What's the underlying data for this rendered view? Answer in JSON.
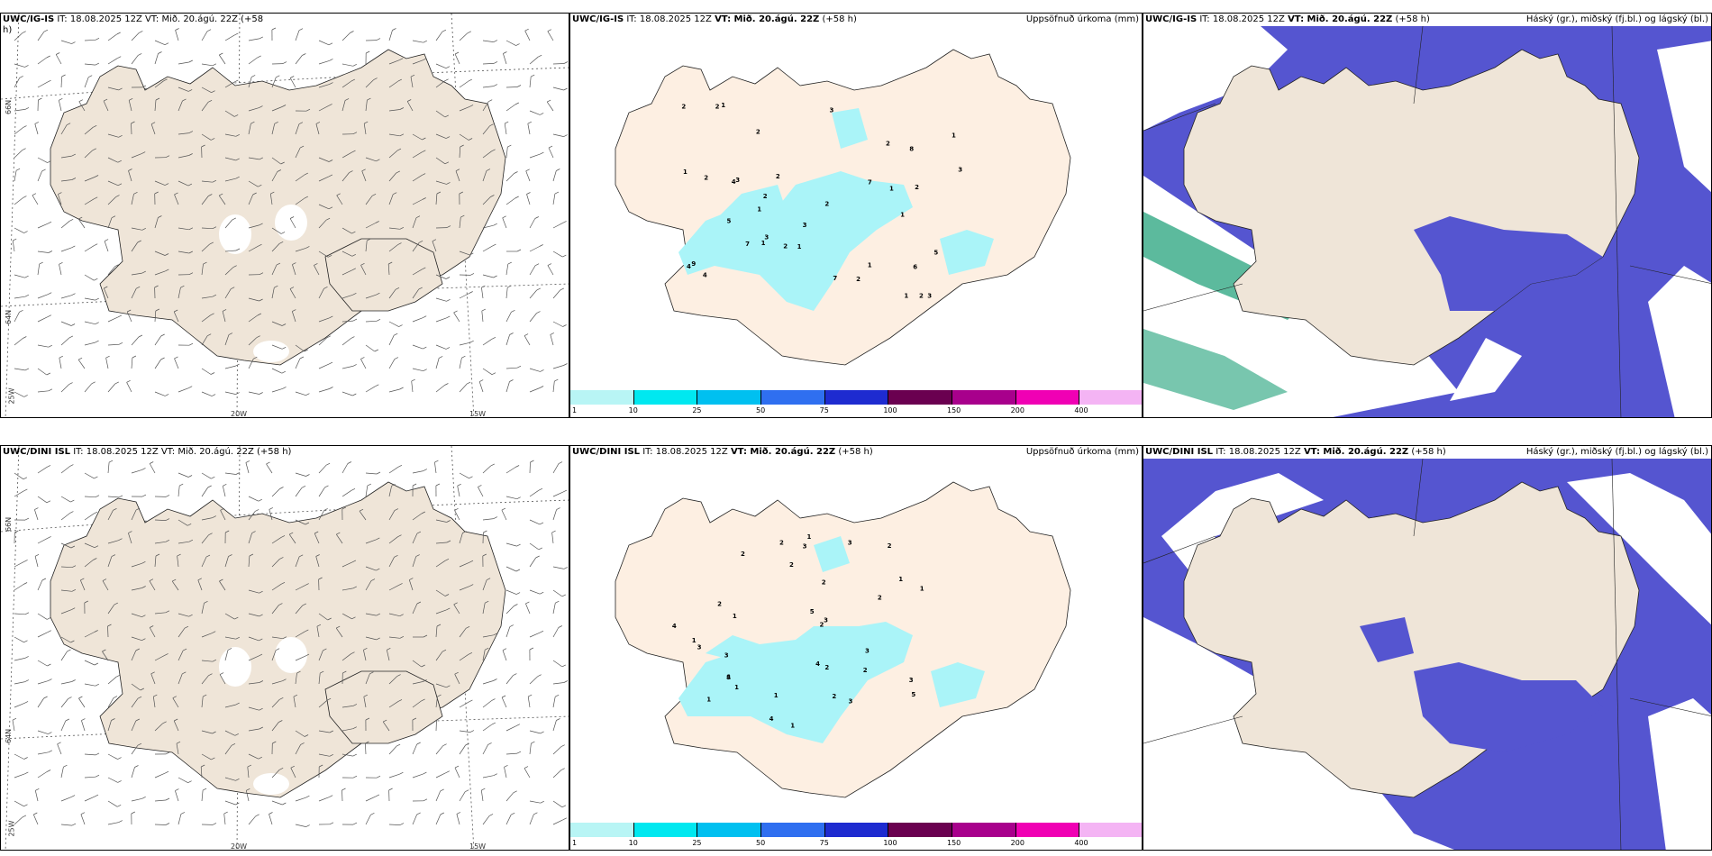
{
  "rows": [
    {
      "model": "UWC/IG-IS",
      "wind_header_model": "UWC/IG-IS",
      "wind_header_rest": "IT: 18.08.2025 12Z VT: Mið. 20.ágú. 22Z (+58",
      "wind_header_wrap": "h)"
    },
    {
      "model": "UWC/DINI ISL",
      "wind_header_model": "UWC/DINI ISL",
      "wind_header_rest": "IT: 18.08.2025 12Z VT: Mið. 20.ágú. 22Z (+58 h)",
      "wind_header_wrap": ""
    }
  ],
  "it_label": "IT: 18.08.2025 12Z",
  "vt_label": "VT: Mið. 20.ágú. 22Z",
  "lead_label": "(+58 h)",
  "precip_title": "Uppsöfnuð úrkoma (mm)",
  "cloud_title": "Háský (gr.), miðský (fj.bl.) og lágský (bl.)",
  "lat_labels": [
    "66N",
    "64N"
  ],
  "lon_labels": [
    "25W",
    "20W",
    "15W"
  ],
  "colorbar": {
    "ticks": [
      "1",
      "10",
      "25",
      "50",
      "75",
      "100",
      "150",
      "200",
      "400"
    ],
    "colors": [
      "#b8f5f5",
      "#00e8f0",
      "#00c0f0",
      "#2f6ff0",
      "#1e2bd0",
      "#6a0050",
      "#a8008c",
      "#f000b4",
      "#f4b4f4"
    ]
  },
  "colors": {
    "land": "#efe5d8",
    "land_precip": "#fdefe2",
    "precip_light": "#aaf4f8",
    "sea_cloud": "#5555d0",
    "cloud_white": "#ffffff",
    "high_cloud": "#3fae8c"
  },
  "precip_numbers_top": [
    "3",
    "4",
    "2",
    "1",
    "3",
    "2",
    "1",
    "1",
    "1",
    "1",
    "2",
    "3",
    "2",
    "1",
    "2",
    "1",
    "2",
    "3",
    "1",
    "2",
    "2",
    "3",
    "2",
    "7",
    "6",
    "7",
    "7",
    "9",
    "8",
    "4",
    "3",
    "2",
    "4",
    "5",
    "2",
    "1",
    "2",
    "1",
    "5"
  ],
  "precip_numbers_bottom": [
    "1",
    "2",
    "2",
    "1",
    "2",
    "1",
    "3",
    "1",
    "1",
    "2",
    "1",
    "1",
    "2",
    "2",
    "1",
    "2",
    "5",
    "4",
    "8",
    "4",
    "3",
    "3",
    "2",
    "3",
    "5",
    "1",
    "3",
    "3",
    "2",
    "3",
    "2",
    "1",
    "2",
    "4",
    "3"
  ]
}
